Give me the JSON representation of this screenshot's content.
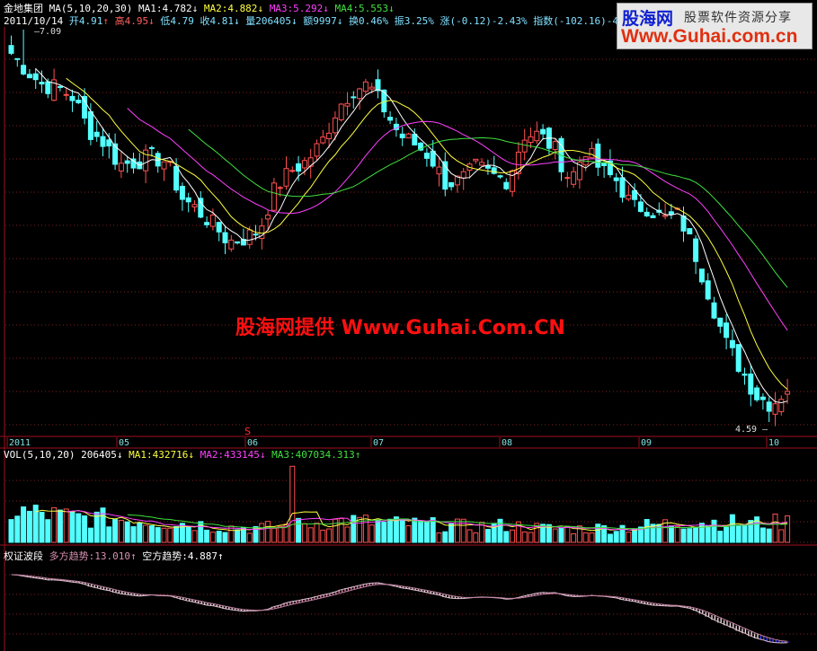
{
  "header": {
    "stock_name": "金地集团",
    "ma_label": "MA(5,10,20,30)",
    "ma1": "MA1:4.782",
    "ma2": "MA2:4.882",
    "ma3": "MA3:5.292",
    "ma4": "MA4:5.553",
    "date": "2011/10/14",
    "open": "开4.91",
    "high": "高4.95",
    "low": "低4.79",
    "close": "收4.81",
    "volume": "量206405",
    "amount": "额9997",
    "turnover": "换0.46%",
    "amplitude": "振3.25%",
    "change": "涨(-0.12)-2.43%",
    "index": "指数(-102.16)-4.07%"
  },
  "logo": {
    "name": "股海网",
    "slogan": "股票软件资源分享",
    "url": "Www.Guhai.com.cn"
  },
  "watermark": "股海网提供 Www.Guhai.Com.CN",
  "volume_header": {
    "label": "VOL(5,10,20)",
    "value": "206405",
    "ma1": "MA1:432716",
    "ma2": "MA2:433145",
    "ma3": "MA3:407034.313"
  },
  "indicator_header": {
    "name": "权证波段",
    "bull": "多方趋势:13.010",
    "bear": "空方趋势:4.887"
  },
  "colors": {
    "up": "#ff5050",
    "down": "#54ffff",
    "ma1": "#ffffff",
    "ma2": "#ffff40",
    "ma3": "#ff40ff",
    "ma4": "#40e040",
    "grid": "#a01020",
    "axis_text": "#80e0e0"
  },
  "chart_data": {
    "type": "candlestick",
    "x_ticks": [
      "2011",
      "05",
      "06",
      "07",
      "08",
      "09",
      "10"
    ],
    "price_high_label": "7.09",
    "price_low_label": "4.59",
    "marker": "S",
    "ylim": [
      4.59,
      7.09
    ],
    "close_approx": [
      6.94,
      6.83,
      6.74,
      6.72,
      6.66,
      6.45,
      6.37,
      6.23,
      6.25,
      6.28,
      6.25,
      6.02,
      5.94,
      5.85,
      5.74,
      5.76,
      5.82,
      6.08,
      6.19,
      6.25,
      6.37,
      6.59,
      6.71,
      6.74,
      6.59,
      6.42,
      6.36,
      6.28,
      6.11,
      6.13,
      6.22,
      6.16,
      6.13,
      6.42,
      6.42,
      6.33,
      6.13,
      6.33,
      6.19,
      6.13,
      5.96,
      5.96,
      5.88,
      5.91,
      5.68,
      5.39,
      5.1,
      4.93,
      4.76,
      4.7,
      4.81
    ],
    "volume_approx": [
      650000,
      600000,
      520000,
      500000,
      480000,
      430000,
      380000,
      320000,
      300000,
      350000,
      420000,
      450000,
      400000,
      380000,
      350000,
      330000,
      360000,
      300000,
      280000,
      300000,
      330000,
      380000,
      450000,
      420000,
      400000,
      430000
    ],
    "volume_peak": 1600000,
    "volume_ylim": [
      0,
      1700000
    ]
  }
}
